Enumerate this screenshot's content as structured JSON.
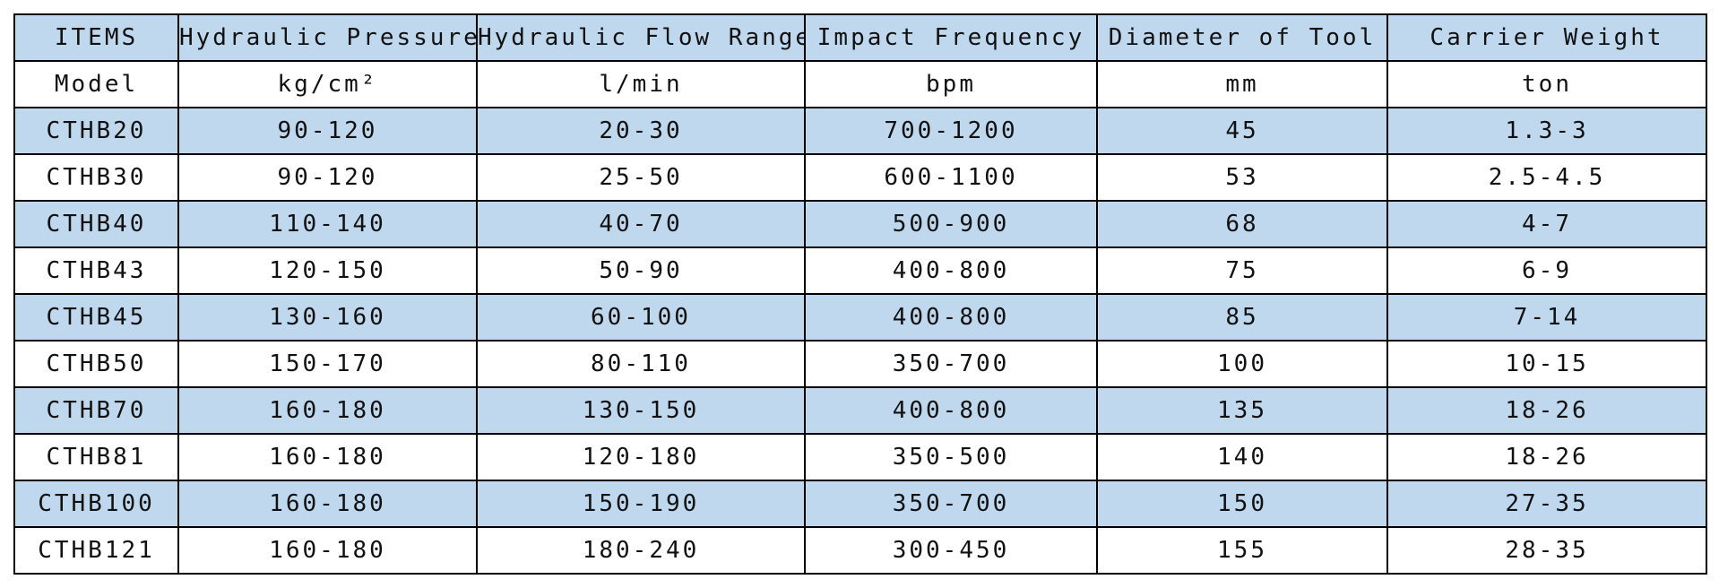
{
  "table": {
    "header": [
      "ITEMS",
      "Hydraulic Pressure",
      "Hydraulic Flow Range",
      "Impact Frequency",
      "Diameter of Tool",
      "Carrier Weight"
    ],
    "units": [
      "Model",
      "kg/cm²",
      "l/min",
      "bpm",
      "mm",
      "ton"
    ],
    "rows": [
      [
        "CTHB20",
        "90-120",
        "20-30",
        "700-1200",
        "45",
        "1.3-3"
      ],
      [
        "CTHB30",
        "90-120",
        "25-50",
        "600-1100",
        "53",
        "2.5-4.5"
      ],
      [
        "CTHB40",
        "110-140",
        "40-70",
        "500-900",
        "68",
        "4-7"
      ],
      [
        "CTHB43",
        "120-150",
        "50-90",
        "400-800",
        "75",
        "6-9"
      ],
      [
        "CTHB45",
        "130-160",
        "60-100",
        "400-800",
        "85",
        "7-14"
      ],
      [
        "CTHB50",
        "150-170",
        "80-110",
        "350-700",
        "100",
        "10-15"
      ],
      [
        "CTHB70",
        "160-180",
        "130-150",
        "400-800",
        "135",
        "18-26"
      ],
      [
        "CTHB81",
        "160-180",
        "120-180",
        "350-500",
        "140",
        "18-26"
      ],
      [
        "CTHB100",
        "160-180",
        "150-190",
        "350-700",
        "150",
        "27-35"
      ],
      [
        "CTHB121",
        "160-180",
        "180-240",
        "300-450",
        "155",
        "28-35"
      ]
    ]
  },
  "colors": {
    "shaded_row": "#c0d8ee",
    "plain_row": "#ffffff",
    "border": "#000000",
    "text": "#111111"
  }
}
